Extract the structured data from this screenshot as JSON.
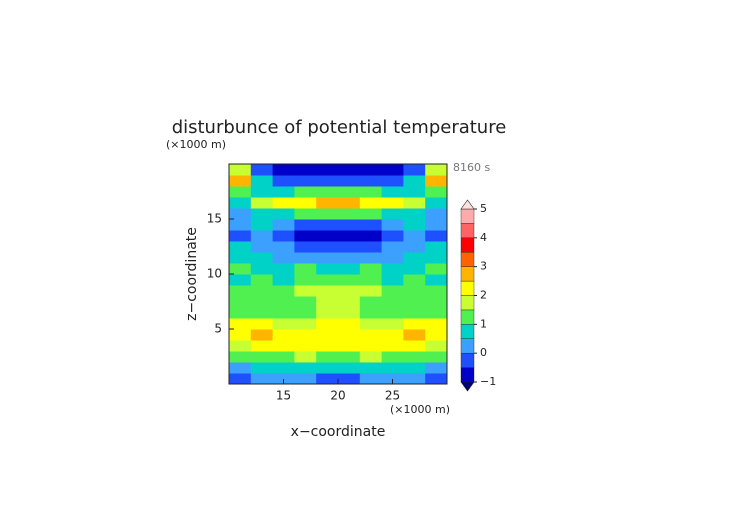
{
  "chart_data": {
    "type": "contour",
    "title": "disturbunce of potential temperature",
    "time_label": "8160 s",
    "xlabel": "x−coordinate",
    "ylabel": "z−coordinate",
    "xunit": "(×1000 m)",
    "yunit": "(×1000 m)",
    "xlim": [
      10,
      30
    ],
    "ylim": [
      0,
      20
    ],
    "xticks": [
      15,
      20,
      25
    ],
    "yticks": [
      5,
      10,
      15
    ],
    "x": [
      11,
      13,
      15,
      17,
      19,
      21,
      23,
      25,
      27,
      29
    ],
    "y": [
      0.5,
      1.5,
      2.5,
      3.5,
      4.5,
      5.5,
      6.5,
      7.5,
      8.5,
      9.5,
      10.5,
      11.5,
      12.5,
      13.5,
      14.5,
      15.5,
      16.5,
      17.5,
      18.5,
      19.5
    ],
    "z": [
      [
        -0.3,
        0.0,
        0.2,
        0.0,
        -0.2,
        -0.2,
        0.0,
        0.2,
        0.0,
        -0.3
      ],
      [
        0.3,
        0.5,
        0.7,
        0.8,
        0.6,
        0.6,
        0.8,
        0.7,
        0.5,
        0.3
      ],
      [
        1.0,
        1.2,
        1.4,
        1.5,
        1.2,
        1.2,
        1.5,
        1.4,
        1.2,
        1.0
      ],
      [
        1.8,
        2.0,
        2.2,
        2.3,
        2.0,
        2.0,
        2.3,
        2.2,
        2.0,
        1.8
      ],
      [
        2.3,
        2.6,
        2.2,
        2.0,
        2.1,
        2.1,
        2.0,
        2.2,
        2.6,
        2.3
      ],
      [
        2.2,
        2.0,
        1.6,
        1.8,
        2.0,
        2.0,
        1.8,
        1.6,
        2.0,
        2.2
      ],
      [
        1.2,
        1.3,
        1.3,
        1.4,
        1.8,
        1.8,
        1.4,
        1.3,
        1.3,
        1.2
      ],
      [
        1.1,
        1.2,
        1.3,
        1.2,
        1.6,
        1.6,
        1.2,
        1.3,
        1.2,
        1.1
      ],
      [
        1.0,
        1.2,
        1.3,
        1.5,
        1.8,
        1.8,
        1.5,
        1.3,
        1.2,
        1.0
      ],
      [
        0.8,
        1.0,
        0.7,
        1.2,
        1.4,
        1.4,
        1.2,
        0.7,
        1.0,
        0.8
      ],
      [
        1.2,
        0.7,
        0.9,
        1.0,
        0.6,
        0.6,
        1.0,
        0.9,
        0.7,
        1.2
      ],
      [
        0.6,
        0.8,
        0.4,
        0.2,
        0.3,
        0.3,
        0.2,
        0.4,
        0.8,
        0.6
      ],
      [
        0.7,
        0.3,
        0.0,
        -0.3,
        -0.4,
        -0.4,
        -0.3,
        0.0,
        0.3,
        0.7
      ],
      [
        -0.2,
        0.1,
        -0.5,
        -0.8,
        -0.9,
        -0.9,
        -0.8,
        -0.5,
        0.1,
        -0.2
      ],
      [
        0.3,
        0.6,
        0.2,
        -0.3,
        -0.5,
        -0.5,
        -0.3,
        0.2,
        0.6,
        0.3
      ],
      [
        0.2,
        0.5,
        0.8,
        1.0,
        1.2,
        1.2,
        1.0,
        0.8,
        0.5,
        0.2
      ],
      [
        0.6,
        1.5,
        2.0,
        2.3,
        2.8,
        2.8,
        2.3,
        2.0,
        1.5,
        0.6
      ],
      [
        1.2,
        0.7,
        0.8,
        1.0,
        1.3,
        1.3,
        1.0,
        0.8,
        0.7,
        1.2
      ],
      [
        2.5,
        0.5,
        -0.3,
        -0.5,
        -0.5,
        -0.5,
        -0.5,
        -0.3,
        0.5,
        2.5
      ],
      [
        1.5,
        -0.5,
        -0.8,
        -0.8,
        -0.8,
        -0.8,
        -0.8,
        -0.8,
        -0.5,
        1.5
      ]
    ],
    "levels": [
      -1,
      -0.5,
      0,
      0.5,
      1,
      1.5,
      2,
      2.5,
      3,
      3.5,
      4,
      4.5,
      5
    ],
    "colors": [
      "#0000c8",
      "#1e50ff",
      "#3ca0ff",
      "#00d2c8",
      "#50f050",
      "#c8ff32",
      "#ffff00",
      "#ffb400",
      "#ff6400",
      "#ff0000",
      "#ff6464",
      "#ffaaaa"
    ],
    "colorbar_ticks": [
      {
        "value": -1,
        "label": "−1"
      },
      0,
      1,
      2,
      3,
      4,
      5
    ]
  }
}
